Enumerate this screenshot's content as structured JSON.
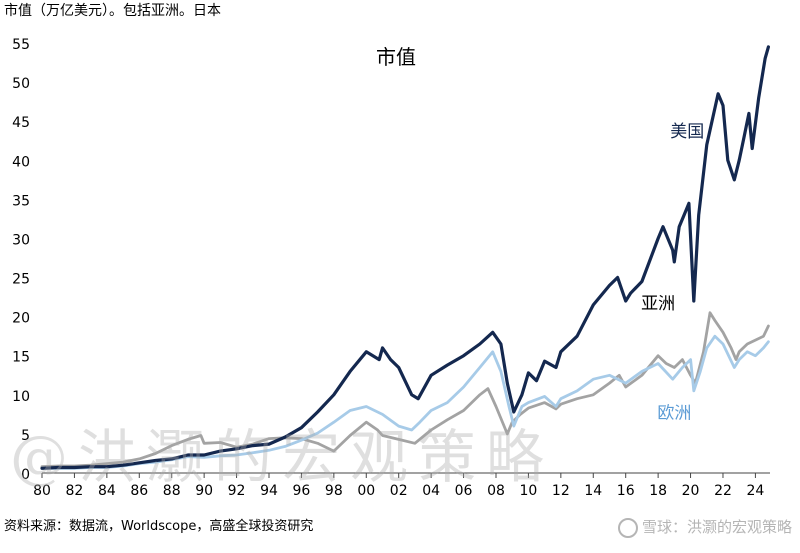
{
  "header": {
    "subtitle": "市值（万亿美元）。包括亚洲。日本"
  },
  "footer": {
    "source": "资料来源：数据流，Worldscope，高盛全球投资研究",
    "brand": "雪球：洪灏的宏观策略"
  },
  "watermark": "@洪灏的宏观策略",
  "colors": {
    "us": "#14284f",
    "asia": "#a3a3a3",
    "europe": "#a7cbe8"
  },
  "chart_data": {
    "type": "line",
    "title": "市值",
    "ylim": [
      0,
      55
    ],
    "yticks": [
      0,
      5,
      10,
      15,
      20,
      25,
      30,
      35,
      40,
      45,
      50,
      55
    ],
    "xlim": [
      1980,
      2024.9
    ],
    "xticks": [
      {
        "x": 1980,
        "label": "80"
      },
      {
        "x": 1982,
        "label": "82"
      },
      {
        "x": 1984,
        "label": "84"
      },
      {
        "x": 1986,
        "label": "86"
      },
      {
        "x": 1988,
        "label": "88"
      },
      {
        "x": 1990,
        "label": "90"
      },
      {
        "x": 1992,
        "label": "92"
      },
      {
        "x": 1994,
        "label": "94"
      },
      {
        "x": 1996,
        "label": "96"
      },
      {
        "x": 1998,
        "label": "98"
      },
      {
        "x": 2000,
        "label": "00"
      },
      {
        "x": 2002,
        "label": "02"
      },
      {
        "x": 2004,
        "label": "04"
      },
      {
        "x": 2006,
        "label": "06"
      },
      {
        "x": 2008,
        "label": "08"
      },
      {
        "x": 2010,
        "label": "10"
      },
      {
        "x": 2012,
        "label": "12"
      },
      {
        "x": 2014,
        "label": "14"
      },
      {
        "x": 2016,
        "label": "16"
      },
      {
        "x": 2018,
        "label": "18"
      },
      {
        "x": 2020,
        "label": "20"
      },
      {
        "x": 2022,
        "label": "22"
      },
      {
        "x": 2024,
        "label": "24"
      }
    ],
    "grid": false,
    "series": [
      {
        "name": "美国",
        "color": "#14284f",
        "width": 3.2,
        "points": [
          [
            1980,
            0.6
          ],
          [
            1981,
            0.7
          ],
          [
            1982,
            0.7
          ],
          [
            1983,
            0.8
          ],
          [
            1984,
            0.8
          ],
          [
            1985,
            1.0
          ],
          [
            1986,
            1.3
          ],
          [
            1987,
            1.6
          ],
          [
            1988,
            1.8
          ],
          [
            1989,
            2.3
          ],
          [
            1990,
            2.3
          ],
          [
            1991,
            2.8
          ],
          [
            1992,
            3.1
          ],
          [
            1993,
            3.5
          ],
          [
            1994,
            3.7
          ],
          [
            1995,
            4.6
          ],
          [
            1996,
            5.8
          ],
          [
            1997,
            7.8
          ],
          [
            1998,
            10.0
          ],
          [
            1999,
            13.0
          ],
          [
            2000,
            15.5
          ],
          [
            2000.8,
            14.5
          ],
          [
            2001,
            16.0
          ],
          [
            2001.5,
            14.5
          ],
          [
            2002,
            13.5
          ],
          [
            2002.8,
            10.0
          ],
          [
            2003.2,
            9.5
          ],
          [
            2004,
            12.5
          ],
          [
            2005,
            13.8
          ],
          [
            2006,
            15.0
          ],
          [
            2007,
            16.5
          ],
          [
            2007.8,
            18.0
          ],
          [
            2008.3,
            16.5
          ],
          [
            2008.7,
            11.5
          ],
          [
            2009.1,
            7.8
          ],
          [
            2009.6,
            10.0
          ],
          [
            2010,
            12.8
          ],
          [
            2010.5,
            11.8
          ],
          [
            2011,
            14.3
          ],
          [
            2011.7,
            13.5
          ],
          [
            2012,
            15.5
          ],
          [
            2013,
            17.5
          ],
          [
            2014,
            21.5
          ],
          [
            2015,
            24.0
          ],
          [
            2015.5,
            25.0
          ],
          [
            2016,
            22.0
          ],
          [
            2016.3,
            23.0
          ],
          [
            2017,
            24.5
          ],
          [
            2018,
            30.0
          ],
          [
            2018.3,
            31.5
          ],
          [
            2018.9,
            28.5
          ],
          [
            2019,
            27.0
          ],
          [
            2019.3,
            31.5
          ],
          [
            2019.6,
            33.0
          ],
          [
            2019.9,
            34.5
          ],
          [
            2020.2,
            22.0
          ],
          [
            2020.5,
            33.0
          ],
          [
            2021,
            42.0
          ],
          [
            2021.7,
            48.5
          ],
          [
            2022,
            47.0
          ],
          [
            2022.3,
            40.0
          ],
          [
            2022.7,
            37.5
          ],
          [
            2023,
            40.0
          ],
          [
            2023.3,
            43.0
          ],
          [
            2023.6,
            46.0
          ],
          [
            2023.8,
            41.5
          ],
          [
            2024.2,
            48.0
          ],
          [
            2024.6,
            53.0
          ],
          [
            2024.8,
            54.5
          ]
        ]
      },
      {
        "name": "亚洲",
        "color": "#a3a3a3",
        "width": 2.8,
        "points": [
          [
            1980,
            0.8
          ],
          [
            1981,
            0.9
          ],
          [
            1982,
            0.9
          ],
          [
            1983,
            1.0
          ],
          [
            1984,
            1.2
          ],
          [
            1985,
            1.4
          ],
          [
            1986,
            1.8
          ],
          [
            1987,
            2.5
          ],
          [
            1988,
            3.5
          ],
          [
            1989,
            4.3
          ],
          [
            1989.8,
            4.8
          ],
          [
            1990,
            3.8
          ],
          [
            1991,
            3.9
          ],
          [
            1992,
            3.3
          ],
          [
            1993,
            3.7
          ],
          [
            1994,
            4.4
          ],
          [
            1995,
            4.5
          ],
          [
            1996,
            4.4
          ],
          [
            1997,
            3.8
          ],
          [
            1998,
            2.8
          ],
          [
            1999,
            4.8
          ],
          [
            2000,
            6.5
          ],
          [
            2000.7,
            5.5
          ],
          [
            2001,
            4.8
          ],
          [
            2002,
            4.3
          ],
          [
            2003,
            3.8
          ],
          [
            2004,
            5.5
          ],
          [
            2005,
            6.8
          ],
          [
            2006,
            8.0
          ],
          [
            2007,
            10.0
          ],
          [
            2007.5,
            10.8
          ],
          [
            2008,
            8.5
          ],
          [
            2008.7,
            5.0
          ],
          [
            2009,
            6.5
          ],
          [
            2009.5,
            7.5
          ],
          [
            2010,
            8.3
          ],
          [
            2011,
            9.0
          ],
          [
            2011.7,
            8.2
          ],
          [
            2012,
            8.8
          ],
          [
            2013,
            9.5
          ],
          [
            2014,
            10.0
          ],
          [
            2015,
            11.5
          ],
          [
            2015.6,
            12.5
          ],
          [
            2016,
            11.0
          ],
          [
            2017,
            12.5
          ],
          [
            2018,
            15.0
          ],
          [
            2018.5,
            14.0
          ],
          [
            2019,
            13.5
          ],
          [
            2019.5,
            14.5
          ],
          [
            2020,
            12.5
          ],
          [
            2020.3,
            11.5
          ],
          [
            2020.8,
            15.5
          ],
          [
            2021.2,
            20.5
          ],
          [
            2021.5,
            19.5
          ],
          [
            2022,
            18.0
          ],
          [
            2022.5,
            16.0
          ],
          [
            2022.8,
            14.5
          ],
          [
            2023,
            15.5
          ],
          [
            2023.5,
            16.5
          ],
          [
            2024,
            17.0
          ],
          [
            2024.5,
            17.5
          ],
          [
            2024.8,
            18.8
          ]
        ]
      },
      {
        "name": "欧洲",
        "color": "#a7cbe8",
        "width": 2.8,
        "points": [
          [
            1980,
            0.6
          ],
          [
            1981,
            0.6
          ],
          [
            1982,
            0.6
          ],
          [
            1983,
            0.7
          ],
          [
            1984,
            0.7
          ],
          [
            1985,
            0.9
          ],
          [
            1986,
            1.2
          ],
          [
            1987,
            1.4
          ],
          [
            1988,
            1.7
          ],
          [
            1989,
            2.1
          ],
          [
            1990,
            2.0
          ],
          [
            1991,
            2.2
          ],
          [
            1992,
            2.3
          ],
          [
            1993,
            2.6
          ],
          [
            1994,
            2.9
          ],
          [
            1995,
            3.4
          ],
          [
            1996,
            4.2
          ],
          [
            1997,
            5.1
          ],
          [
            1998,
            6.5
          ],
          [
            1999,
            8.0
          ],
          [
            2000,
            8.5
          ],
          [
            2001,
            7.5
          ],
          [
            2002,
            6.0
          ],
          [
            2002.8,
            5.5
          ],
          [
            2003.3,
            6.5
          ],
          [
            2004,
            8.0
          ],
          [
            2005,
            9.0
          ],
          [
            2006,
            11.0
          ],
          [
            2007,
            13.5
          ],
          [
            2007.8,
            15.5
          ],
          [
            2008.3,
            13.0
          ],
          [
            2008.8,
            8.5
          ],
          [
            2009.1,
            6.0
          ],
          [
            2009.6,
            8.5
          ],
          [
            2010,
            9.0
          ],
          [
            2011,
            9.8
          ],
          [
            2011.7,
            8.5
          ],
          [
            2012,
            9.5
          ],
          [
            2013,
            10.5
          ],
          [
            2014,
            12.0
          ],
          [
            2015,
            12.5
          ],
          [
            2016,
            11.5
          ],
          [
            2017,
            13.0
          ],
          [
            2018,
            14.0
          ],
          [
            2018.9,
            12.0
          ],
          [
            2019.5,
            13.5
          ],
          [
            2020,
            14.5
          ],
          [
            2020.2,
            10.5
          ],
          [
            2020.6,
            13.0
          ],
          [
            2021,
            16.0
          ],
          [
            2021.5,
            17.5
          ],
          [
            2022,
            16.5
          ],
          [
            2022.7,
            13.5
          ],
          [
            2023,
            14.5
          ],
          [
            2023.5,
            15.5
          ],
          [
            2024,
            15.0
          ],
          [
            2024.5,
            16.0
          ],
          [
            2024.8,
            16.8
          ]
        ]
      }
    ],
    "labels": [
      {
        "text": "美国",
        "x": 2019.8,
        "y": 43.0,
        "color": "#14284f"
      },
      {
        "text": "亚洲",
        "x": 2018.0,
        "y": 21.0,
        "color": "#000000"
      },
      {
        "text": "欧洲",
        "x": 2019.0,
        "y": 7.0,
        "color": "#5b9bd5"
      }
    ]
  }
}
